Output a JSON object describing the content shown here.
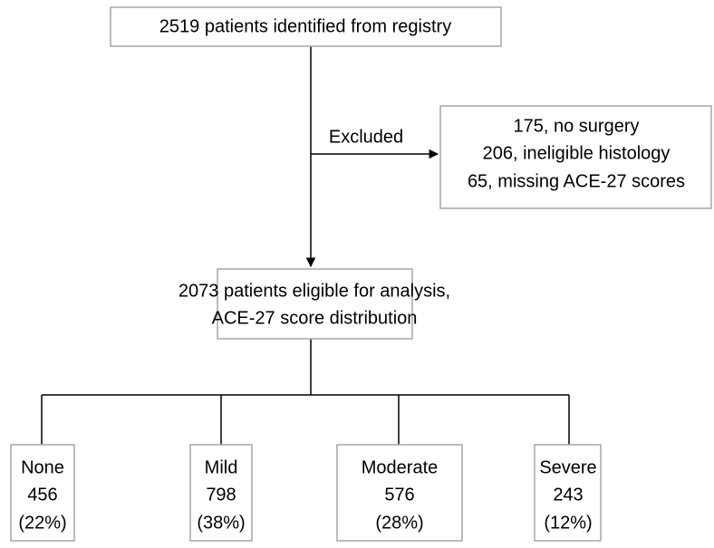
{
  "registry": {
    "label": "2519 patients identified from registry"
  },
  "exclusion": {
    "label": "Excluded",
    "reasons": [
      "175, no surgery",
      "206, ineligible histology",
      "65, missing ACE-27 scores"
    ]
  },
  "eligible": {
    "lines": [
      "2073 patients eligible for analysis,",
      "ACE-27 score distribution"
    ]
  },
  "groups": [
    {
      "label": "None",
      "count": "456",
      "percent": "(22%)"
    },
    {
      "label": "Mild",
      "count": "798",
      "percent": "(38%)"
    },
    {
      "label": "Moderate",
      "count": "576",
      "percent": "(28%)"
    },
    {
      "label": "Severe",
      "count": "243",
      "percent": "(12%)"
    }
  ]
}
